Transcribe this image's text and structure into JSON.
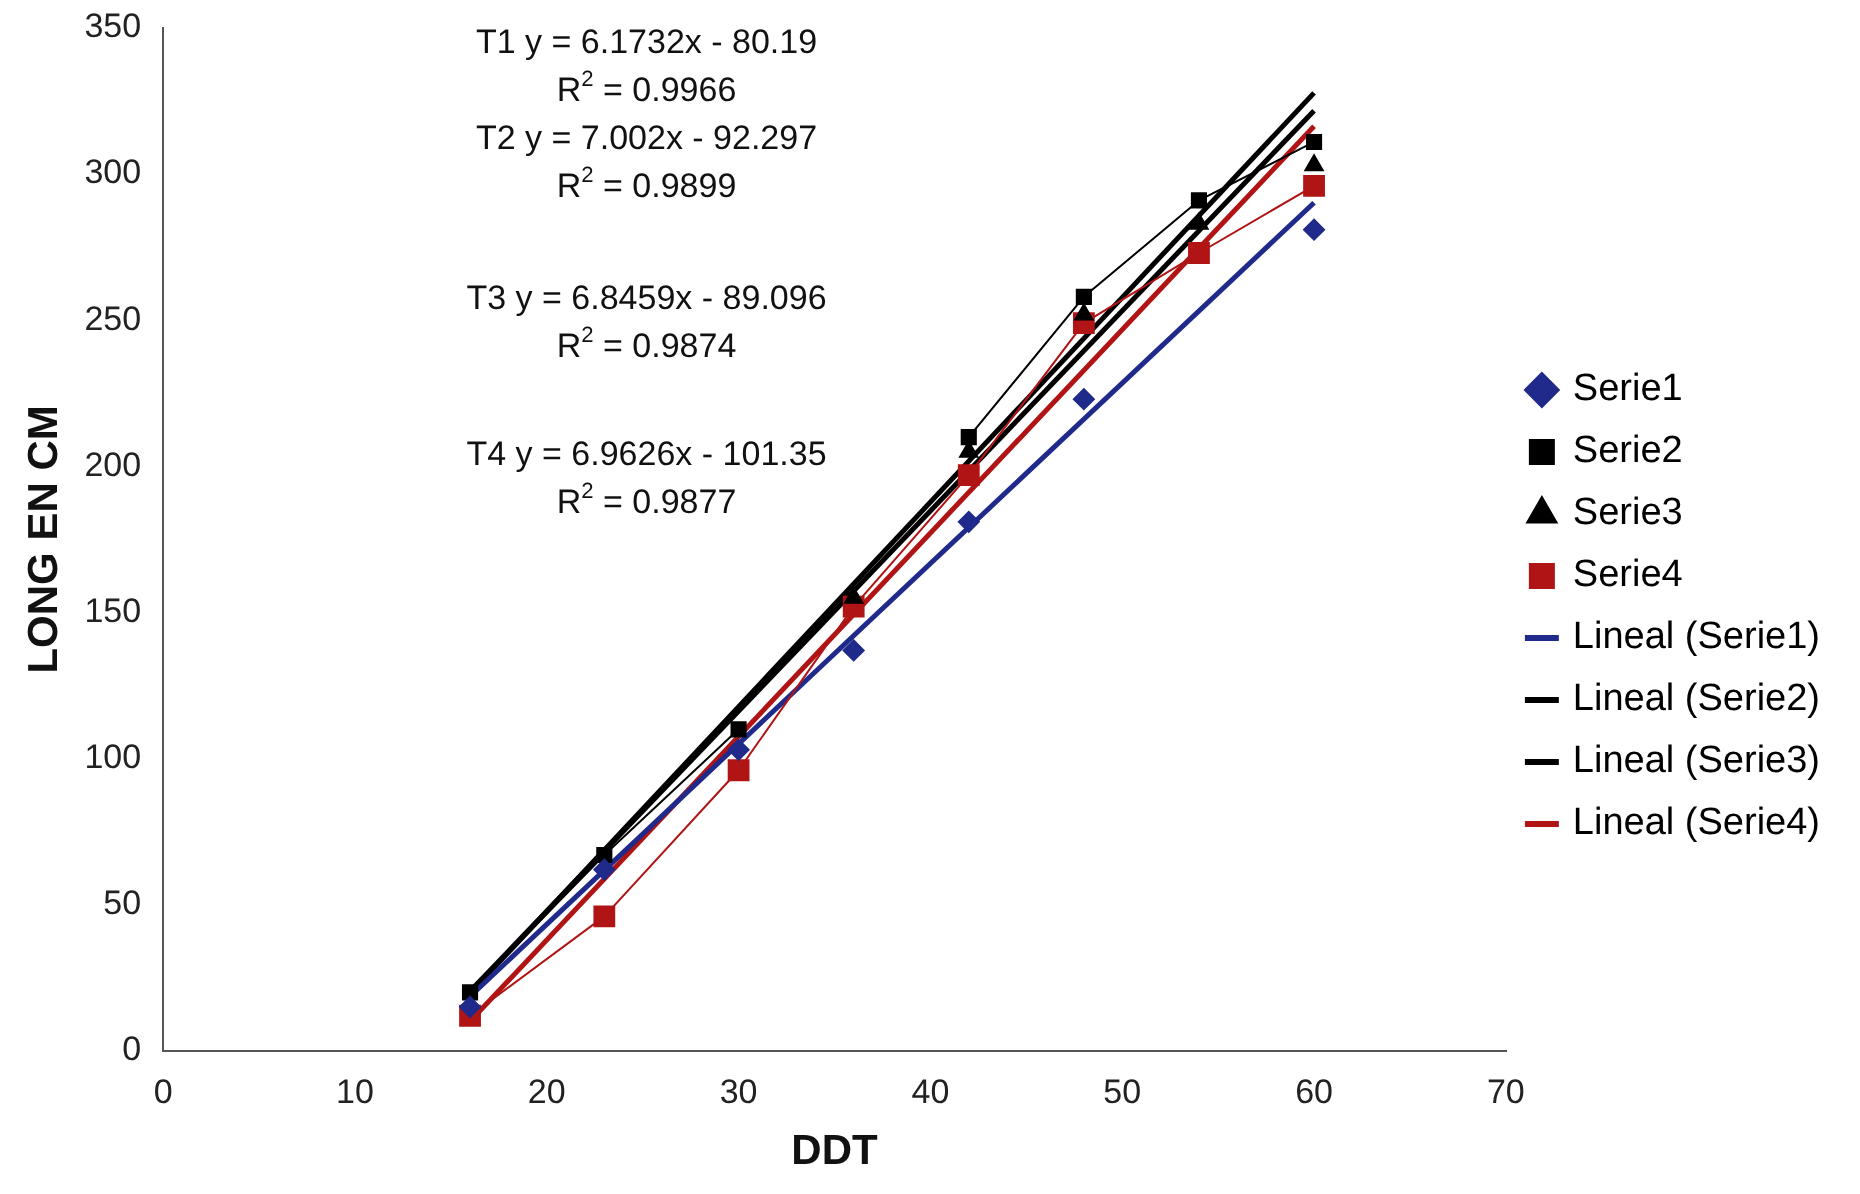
{
  "chart_data": {
    "type": "scatter",
    "xlabel": "DDT",
    "ylabel": "LONG EN CM",
    "xlim": [
      0,
      70
    ],
    "xticks": [
      0,
      10,
      20,
      30,
      40,
      50,
      60,
      70
    ],
    "ylim": [
      0,
      350
    ],
    "yticks": [
      0,
      50,
      100,
      150,
      200,
      250,
      300,
      350
    ],
    "grid": false,
    "legend": "right",
    "series": [
      {
        "name": "Serie1",
        "type": "scatter",
        "marker": "diamond",
        "color": "#1f2a8a",
        "x": [
          16,
          23,
          30,
          36,
          42,
          48,
          54,
          60
        ],
        "values": [
          15,
          62,
          103,
          137,
          181,
          223,
          null,
          281
        ]
      },
      {
        "name": "Serie2",
        "type": "line",
        "marker": "square",
        "color": "#000000",
        "x": [
          16,
          23,
          30,
          36,
          42,
          48,
          54,
          60
        ],
        "values": [
          20,
          67,
          110,
          null,
          210,
          258,
          291,
          311
        ]
      },
      {
        "name": "Serie3",
        "type": "scatter",
        "marker": "triangle",
        "color": "#000000",
        "x": [
          36,
          42,
          48,
          54,
          60
        ],
        "values": [
          155,
          205,
          252,
          283,
          303
        ]
      },
      {
        "name": "Serie4",
        "type": "line",
        "marker": "square",
        "color": "#b01414",
        "x": [
          16,
          23,
          30,
          36,
          42,
          48,
          54,
          60
        ],
        "values": [
          12,
          46,
          96,
          152,
          197,
          249,
          273,
          296
        ]
      },
      {
        "name": "Lineal (Serie1)",
        "type": "line",
        "color": "#1f2a8a",
        "x": [
          16,
          60
        ],
        "values": [
          18.6,
          290.2
        ]
      },
      {
        "name": "Lineal (Serie2)",
        "type": "line",
        "color": "#000000",
        "x": [
          16,
          60
        ],
        "values": [
          19.7,
          327.8
        ]
      },
      {
        "name": "Lineal (Serie3)",
        "type": "line",
        "color": "#000000",
        "x": [
          16,
          60
        ],
        "values": [
          20.4,
          321.7
        ]
      },
      {
        "name": "Lineal (Serie4)",
        "type": "line",
        "color": "#b01414",
        "x": [
          16,
          60
        ],
        "values": [
          10.1,
          316.4
        ]
      }
    ],
    "annotations": [
      "T1 y = 6.1732x - 80.19",
      "R$^{2}$ = 0.9966",
      "T2 y = 7.002x - 92.297",
      "R$^{2}$ = 0.9899",
      "T3 y = 6.8459x - 89.096",
      "R$^{2}$ = 0.9874",
      "T4 y = 6.9626x - 101.35",
      "R$^{2}$ = 0.9877"
    ]
  }
}
